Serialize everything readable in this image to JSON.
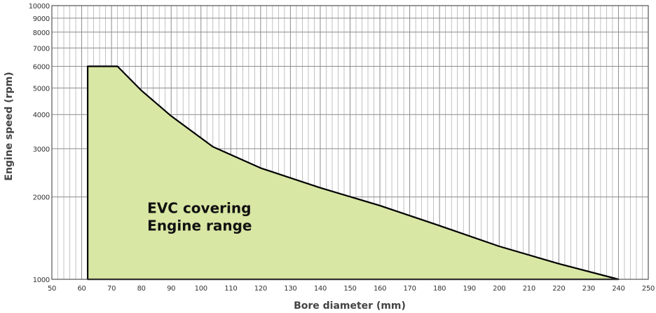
{
  "chart_data": {
    "type": "area",
    "xlabel": "Bore diameter (mm)",
    "ylabel": "Engine speed (rpm)",
    "xlim": [
      50,
      250
    ],
    "ylim": [
      1000,
      10000
    ],
    "yscale": "log",
    "grid": true,
    "x_ticks": [
      50,
      60,
      70,
      80,
      90,
      100,
      110,
      120,
      130,
      140,
      150,
      160,
      170,
      180,
      190,
      200,
      210,
      220,
      230,
      240,
      250
    ],
    "y_ticks": [
      1000,
      2000,
      3000,
      4000,
      5000,
      6000,
      7000,
      8000,
      9000,
      10000
    ],
    "series": [
      {
        "x": [
          62,
          62,
          72,
          80,
          90,
          104,
          120,
          140,
          160,
          180,
          200,
          220,
          240,
          62
        ],
        "y": [
          1000,
          6000,
          6000,
          4900,
          3950,
          3050,
          2550,
          2160,
          1860,
          1570,
          1320,
          1140,
          1000,
          1000
        ]
      }
    ],
    "annotations": [
      {
        "lines": [
          "EVC covering",
          "Engine range"
        ],
        "x": 82,
        "y": 1900
      }
    ],
    "colors": {
      "fill": "#d8e7a4",
      "outline": "#000000",
      "grid": "#a8a8a8"
    }
  }
}
